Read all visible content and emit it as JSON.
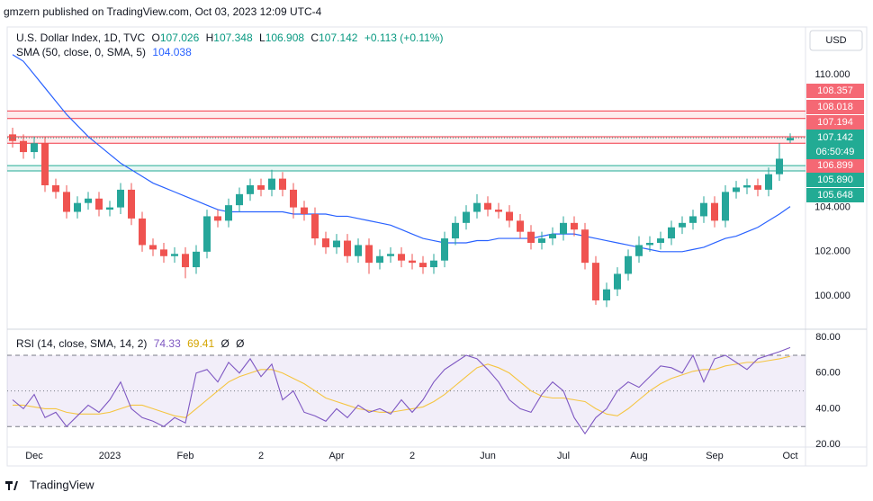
{
  "publisher": "gmzern published on TradingView.com, Oct 03, 2023 12:09 UTC-4",
  "footer": "TradingView",
  "currency": "USD",
  "chart_data": [
    {
      "type": "candlestick",
      "title": "U.S. Dollar Index, 1D, TVC",
      "ohlc_letters": [
        "O",
        "H",
        "L",
        "C"
      ],
      "change": "+0.113 (+0.11%)",
      "countdown": "06:50:49",
      "up_color": "#26a69a",
      "down_color": "#ef5350",
      "last_color": "#22ab94",
      "categories": [
        null,
        null,
        "Dec",
        null,
        null,
        null,
        null,
        null,
        null,
        "2023",
        null,
        null,
        null,
        null,
        null,
        null,
        "Feb",
        null,
        null,
        null,
        null,
        null,
        null,
        "2",
        null,
        null,
        null,
        null,
        null,
        null,
        "Apr",
        null,
        null,
        null,
        null,
        null,
        null,
        "2",
        null,
        null,
        null,
        null,
        null,
        null,
        "Jun",
        null,
        null,
        null,
        null,
        null,
        null,
        "Jul",
        null,
        null,
        null,
        null,
        null,
        null,
        "Aug",
        null,
        null,
        null,
        null,
        null,
        null,
        "Sep",
        null,
        null,
        null,
        null,
        null,
        null,
        "Oct"
      ],
      "open": [
        107.3,
        107.0,
        106.5,
        106.9,
        105.0,
        104.7,
        103.8,
        104.2,
        104.4,
        103.9,
        104.0,
        104.8,
        103.5,
        102.3,
        102.1,
        101.8,
        101.9,
        101.3,
        102.0,
        103.6,
        103.4,
        104.1,
        104.6,
        105.0,
        104.8,
        105.3,
        104.8,
        104.0,
        103.7,
        102.6,
        102.2,
        102.5,
        101.8,
        102.3,
        101.5,
        101.8,
        101.9,
        101.6,
        101.5,
        101.3,
        101.6,
        102.6,
        103.3,
        103.8,
        104.2,
        103.9,
        103.8,
        103.4,
        102.9,
        102.4,
        102.6,
        102.8,
        103.3,
        103.0,
        101.5,
        99.8,
        100.3,
        101.0,
        101.8,
        102.3,
        102.4,
        102.6,
        103.1,
        103.3,
        103.6,
        104.2,
        103.4,
        104.7,
        104.9,
        105.0,
        104.8,
        105.5,
        107.026
      ],
      "high": [
        107.6,
        107.3,
        107.2,
        107.2,
        105.3,
        105.0,
        104.5,
        104.7,
        104.7,
        104.3,
        105.1,
        105.1,
        103.8,
        102.6,
        102.4,
        102.2,
        102.2,
        102.3,
        103.9,
        103.9,
        104.4,
        104.9,
        105.3,
        105.3,
        105.7,
        105.6,
        105.1,
        104.3,
        104.0,
        102.9,
        102.8,
        102.8,
        102.6,
        102.6,
        102.1,
        102.2,
        102.2,
        101.9,
        101.8,
        101.9,
        102.9,
        103.6,
        104.1,
        104.6,
        104.5,
        104.2,
        104.1,
        103.7,
        103.2,
        102.9,
        103.1,
        103.6,
        103.6,
        103.3,
        101.8,
        100.6,
        101.3,
        102.1,
        102.7,
        102.7,
        102.9,
        103.4,
        103.6,
        103.9,
        104.5,
        104.5,
        105.0,
        105.2,
        105.3,
        105.3,
        105.8,
        106.9,
        107.348
      ],
      "low": [
        106.7,
        106.2,
        106.2,
        104.7,
        104.4,
        103.5,
        103.5,
        103.9,
        103.6,
        103.6,
        103.7,
        103.2,
        102.0,
        101.8,
        101.5,
        101.5,
        100.8,
        101.0,
        101.7,
        103.1,
        103.1,
        103.8,
        104.3,
        104.5,
        104.5,
        104.5,
        103.5,
        103.4,
        102.3,
        101.9,
        101.9,
        101.5,
        101.5,
        101.0,
        101.2,
        101.5,
        101.3,
        101.2,
        101.0,
        101.0,
        101.3,
        102.3,
        103.0,
        103.5,
        103.6,
        103.5,
        103.1,
        102.6,
        102.1,
        102.1,
        102.3,
        102.5,
        102.7,
        101.2,
        99.6,
        99.5,
        100.0,
        100.7,
        101.5,
        102.0,
        102.1,
        102.3,
        102.8,
        103.0,
        103.3,
        103.1,
        103.1,
        104.4,
        104.6,
        104.5,
        104.5,
        105.2,
        106.908
      ],
      "close": [
        107.0,
        106.5,
        106.9,
        105.0,
        104.7,
        103.8,
        104.2,
        104.4,
        103.9,
        104.0,
        104.8,
        103.5,
        102.3,
        102.1,
        101.8,
        101.9,
        101.3,
        102.0,
        103.6,
        103.4,
        104.1,
        104.6,
        105.0,
        104.8,
        105.3,
        104.8,
        104.0,
        103.7,
        102.6,
        102.2,
        102.5,
        101.8,
        102.3,
        101.5,
        101.8,
        101.9,
        101.6,
        101.5,
        101.3,
        101.6,
        102.6,
        103.3,
        103.8,
        104.2,
        103.9,
        103.8,
        103.4,
        102.9,
        102.4,
        102.6,
        102.8,
        103.3,
        103.0,
        101.5,
        99.8,
        100.3,
        101.0,
        101.8,
        102.3,
        102.4,
        102.6,
        103.1,
        103.3,
        103.6,
        104.2,
        103.4,
        104.7,
        104.9,
        105.0,
        104.8,
        105.5,
        106.2,
        107.142
      ],
      "series": [
        {
          "name": "SMA (50, close, 0, SMA, 5)",
          "color": "#2962ff",
          "values": [
            110.9,
            110.6,
            110.0,
            109.4,
            108.8,
            108.2,
            107.7,
            107.2,
            106.8,
            106.4,
            106.0,
            105.7,
            105.4,
            105.1,
            104.9,
            104.7,
            104.5,
            104.3,
            104.1,
            103.9,
            103.8,
            103.8,
            103.8,
            103.8,
            103.8,
            103.8,
            103.7,
            103.7,
            103.7,
            103.7,
            103.6,
            103.6,
            103.5,
            103.4,
            103.3,
            103.2,
            103.0,
            102.8,
            102.6,
            102.5,
            102.4,
            102.4,
            102.4,
            102.5,
            102.5,
            102.6,
            102.6,
            102.6,
            102.6,
            102.7,
            102.8,
            102.8,
            102.8,
            102.7,
            102.6,
            102.5,
            102.4,
            102.3,
            102.2,
            102.1,
            102.0,
            102.0,
            102.0,
            102.1,
            102.2,
            102.4,
            102.6,
            102.7,
            102.9,
            103.1,
            103.4,
            103.7,
            104.038
          ]
        }
      ],
      "zones": [
        {
          "color": "#f23645",
          "levels": [
            {
              "value": 108.357,
              "label": "108.357"
            },
            {
              "value": 108.018,
              "label": "108.018"
            }
          ]
        },
        {
          "color": "#f23645",
          "levels": [
            {
              "value": 107.194,
              "label": "107.194"
            },
            {
              "value": 106.899,
              "label": "106.899"
            }
          ]
        },
        {
          "color": "#22ab94",
          "levels": [
            {
              "value": 105.89,
              "label": "105.890"
            },
            {
              "value": 105.648,
              "label": "105.648"
            }
          ]
        }
      ],
      "ylim": [
        98.54,
        112.15
      ],
      "yticks": [
        {
          "value": 100,
          "label": "100.000"
        },
        {
          "value": 102,
          "label": "102.000"
        },
        {
          "value": 104,
          "label": "104.000"
        },
        {
          "value": 110,
          "label": "110.000"
        }
      ]
    },
    {
      "type": "line",
      "title": "RSI (14, close, SMA, 14, 2)",
      "extras": [
        "Ø",
        "Ø"
      ],
      "series": [
        {
          "name": "RSI",
          "color": "#7e57c2",
          "values": [
            45,
            40,
            48,
            35,
            38,
            30,
            36,
            42,
            38,
            45,
            55,
            40,
            35,
            33,
            30,
            35,
            32,
            60,
            62,
            55,
            66,
            60,
            68,
            58,
            65,
            45,
            50,
            38,
            36,
            33,
            40,
            35,
            42,
            38,
            40,
            37,
            45,
            38,
            45,
            55,
            62,
            66,
            70,
            68,
            62,
            55,
            45,
            40,
            38,
            48,
            55,
            50,
            35,
            26,
            35,
            40,
            50,
            55,
            52,
            58,
            64,
            63,
            60,
            70,
            55,
            68,
            70,
            66,
            62,
            68,
            70,
            72,
            74.33
          ]
        },
        {
          "name": "SMA",
          "color": "#f5c542",
          "values": [
            42,
            42,
            41,
            40,
            40,
            38,
            37,
            37,
            37,
            38,
            40,
            42,
            42,
            40,
            38,
            36,
            35,
            40,
            45,
            50,
            55,
            58,
            60,
            62,
            62,
            60,
            57,
            54,
            50,
            46,
            44,
            42,
            40,
            39,
            38,
            38,
            39,
            40,
            41,
            44,
            48,
            53,
            58,
            63,
            65,
            63,
            60,
            55,
            50,
            47,
            46,
            46,
            45,
            44,
            40,
            37,
            36,
            40,
            45,
            50,
            54,
            57,
            59,
            61,
            62,
            62,
            64,
            65,
            66,
            66,
            67,
            68,
            69.41
          ]
        }
      ],
      "bands": [
        70,
        50,
        30
      ],
      "ylim": [
        18.5,
        83.6
      ],
      "yticks": [
        {
          "value": 20,
          "label": "20.00"
        },
        {
          "value": 40,
          "label": "40.00"
        },
        {
          "value": 60,
          "label": "60.00"
        },
        {
          "value": 80,
          "label": "80.00"
        }
      ]
    }
  ]
}
